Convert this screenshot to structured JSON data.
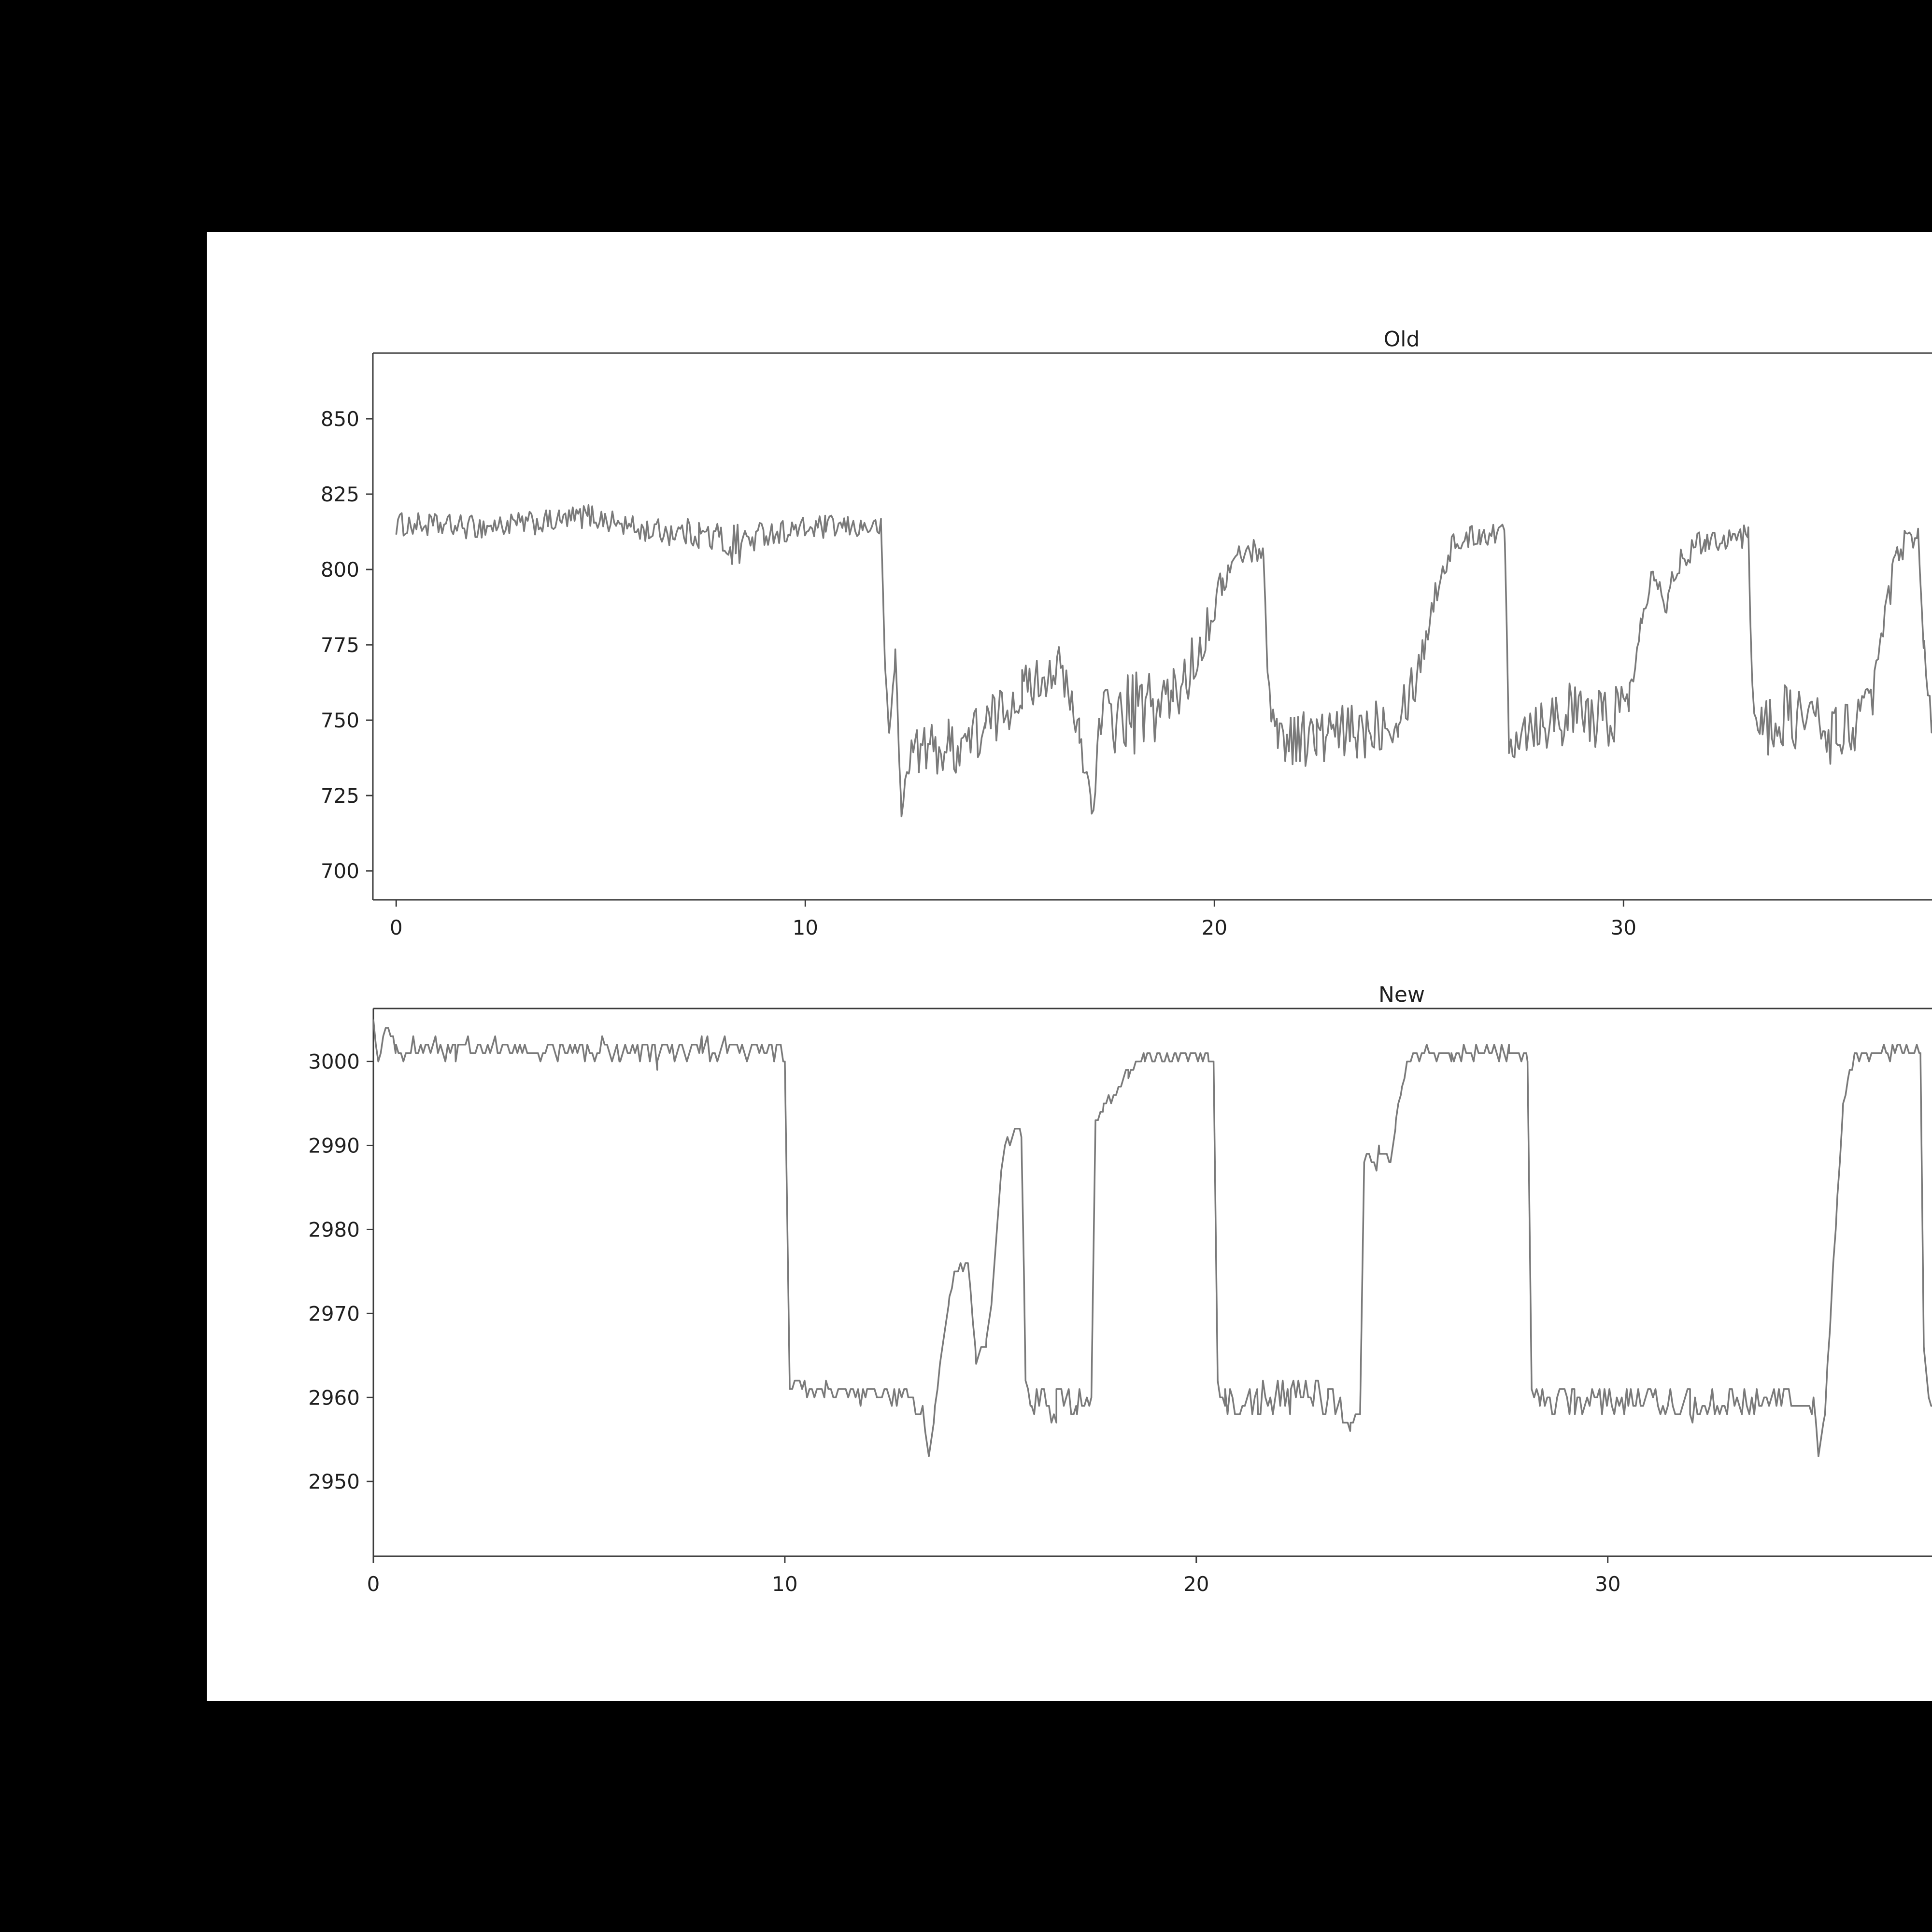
{
  "figure": {
    "page_background": "#000000",
    "canvas_background": "#ffffff"
  },
  "chart_data": [
    {
      "type": "line",
      "title": "Old",
      "line_color": "#7a7a7a",
      "grid": false,
      "legend": null,
      "x_ticks": [
        0,
        10,
        20,
        30
      ],
      "y_ticks": [
        850,
        825,
        800,
        775,
        750,
        725,
        700
      ],
      "xlim": [
        -0.57,
        37.54
      ],
      "ylim": [
        690.4,
        871.8
      ],
      "series": [
        {
          "name": "Old",
          "quantize": false,
          "sample_step_x": 0.045,
          "keypoints_format": [
            "x",
            "mean_y",
            "noise_amplitude"
          ],
          "keypoints": [
            [
              0,
              815,
              4
            ],
            [
              2,
              814,
              4
            ],
            [
              4,
              816,
              4
            ],
            [
              4.7,
              818,
              4
            ],
            [
              6,
              813,
              4
            ],
            [
              7.4,
              812,
              5
            ],
            [
              8.3,
              808,
              8
            ],
            [
              9,
              812,
              4
            ],
            [
              10.5,
              814,
              4
            ],
            [
              11.85,
              814,
              3
            ],
            [
              11.95,
              768,
              2
            ],
            [
              12.05,
              745,
              3
            ],
            [
              12.2,
              772,
              3
            ],
            [
              12.35,
              718,
              3
            ],
            [
              12.55,
              740,
              7
            ],
            [
              13.5,
              741,
              10
            ],
            [
              14.4,
              747,
              10
            ],
            [
              15.3,
              760,
              8
            ],
            [
              16.2,
              768,
              7
            ],
            [
              16.7,
              745,
              8
            ],
            [
              17.0,
              722,
              6
            ],
            [
              17.25,
              750,
              12
            ],
            [
              18.0,
              752,
              14
            ],
            [
              19.0,
              757,
              12
            ],
            [
              19.6,
              772,
              8
            ],
            [
              20.2,
              796,
              5
            ],
            [
              20.6,
              805,
              4
            ],
            [
              21.2,
              807,
              4
            ],
            [
              21.3,
              762,
              5
            ],
            [
              21.55,
              745,
              9
            ],
            [
              22.5,
              744,
              10
            ],
            [
              23.5,
              746,
              10
            ],
            [
              24.5,
              753,
              10
            ],
            [
              24.95,
              765,
              8
            ],
            [
              25.4,
              792,
              5
            ],
            [
              25.8,
              808,
              4
            ],
            [
              26.5,
              812,
              4
            ],
            [
              27.1,
              812,
              4
            ],
            [
              27.2,
              741,
              4
            ],
            [
              27.45,
              748,
              10
            ],
            [
              28.5,
              752,
              11
            ],
            [
              29.5,
              750,
              11
            ],
            [
              30.15,
              757,
              9
            ],
            [
              30.45,
              788,
              6
            ],
            [
              30.75,
              800,
              4
            ],
            [
              31.05,
              789,
              5
            ],
            [
              31.4,
              804,
              4
            ],
            [
              32.0,
              810,
              4
            ],
            [
              33.05,
              811,
              4
            ],
            [
              33.15,
              759,
              4
            ],
            [
              33.4,
              747,
              10
            ],
            [
              34.2,
              752,
              12
            ],
            [
              35.2,
              745,
              11
            ],
            [
              36.0,
              753,
              9
            ],
            [
              36.3,
              776,
              7
            ],
            [
              36.6,
              800,
              5
            ],
            [
              36.9,
              810,
              4
            ],
            [
              37.2,
              812,
              4
            ],
            [
              37.35,
              773,
              4
            ],
            [
              37.54,
              750,
              6
            ]
          ]
        }
      ]
    },
    {
      "type": "line",
      "title": "New",
      "line_color": "#7a7a7a",
      "grid": false,
      "legend": null,
      "x_ticks": [
        0,
        10,
        20,
        30
      ],
      "y_ticks": [
        3000,
        2990,
        2980,
        2970,
        2960,
        2950
      ],
      "xlim": [
        0,
        37.88
      ],
      "ylim": [
        2941.1,
        3006.3
      ],
      "series": [
        {
          "name": "New",
          "quantize": true,
          "sample_step_x": 0.06,
          "keypoints_format": [
            "x",
            "mean_y",
            "noise_amplitude"
          ],
          "keypoints": [
            [
              0,
              3005,
              0
            ],
            [
              0.12,
              3000,
              0.5
            ],
            [
              0.3,
              3004,
              0.5
            ],
            [
              0.55,
              3001.5,
              1
            ],
            [
              2,
              3001.5,
              1.4
            ],
            [
              4,
              3001.3,
              1.2
            ],
            [
              6,
              3001.4,
              1.3
            ],
            [
              6.9,
              3000.8,
              1.8
            ],
            [
              8,
              3001.4,
              1.4
            ],
            [
              9.9,
              3001.4,
              1.1
            ],
            [
              10.0,
              3000.5,
              0.4
            ],
            [
              10.12,
              2961,
              1
            ],
            [
              11,
              2960.3,
              1.3
            ],
            [
              12,
              2960.3,
              1.3
            ],
            [
              13.0,
              2960,
              1.2
            ],
            [
              13.35,
              2958,
              0.8
            ],
            [
              13.5,
              2952.5,
              0.6
            ],
            [
              13.65,
              2958,
              0.8
            ],
            [
              13.8,
              2965,
              0.8
            ],
            [
              14.0,
              2972,
              0.8
            ],
            [
              14.15,
              2975.5,
              0.7
            ],
            [
              14.45,
              2975.5,
              0.7
            ],
            [
              14.65,
              2964.5,
              0.9
            ],
            [
              14.9,
              2966.5,
              0.9
            ],
            [
              15.05,
              2972,
              0.8
            ],
            [
              15.2,
              2983,
              0.8
            ],
            [
              15.35,
              2990.5,
              0.9
            ],
            [
              15.75,
              2991.5,
              0.9
            ],
            [
              15.85,
              2963,
              0.8
            ],
            [
              16.0,
              2959.5,
              1.6
            ],
            [
              16.6,
              2959,
              2.2
            ],
            [
              17.1,
              2959.5,
              2
            ],
            [
              17.45,
              2960,
              1
            ],
            [
              17.55,
              2993,
              0.5
            ],
            [
              17.75,
              2994.5,
              0.5
            ],
            [
              18.05,
              2996.5,
              0.5
            ],
            [
              18.35,
              2998.5,
              0.5
            ],
            [
              18.6,
              3000,
              0.5
            ],
            [
              18.75,
              3000.7,
              0.9
            ],
            [
              19.5,
              3000.7,
              0.9
            ],
            [
              20.3,
              3000.6,
              0.8
            ],
            [
              20.42,
              2999.5,
              0.3
            ],
            [
              20.52,
              2961,
              0.8
            ],
            [
              20.7,
              2959.8,
              1.8
            ],
            [
              21.5,
              2960,
              2.4
            ],
            [
              22.3,
              2960.5,
              2.4
            ],
            [
              23.2,
              2960,
              2.2
            ],
            [
              23.75,
              2956.8,
              1.4
            ],
            [
              23.98,
              2958,
              0.8
            ],
            [
              24.08,
              2988,
              1
            ],
            [
              24.45,
              2988.5,
              1.4
            ],
            [
              24.72,
              2989,
              0.9
            ],
            [
              24.85,
              2993,
              0.6
            ],
            [
              25.0,
              2997,
              0.6
            ],
            [
              25.15,
              3000,
              0.6
            ],
            [
              25.3,
              3000.6,
              0.9
            ],
            [
              26.2,
              3000.7,
              0.9
            ],
            [
              27.0,
              3001,
              0.9
            ],
            [
              27.6,
              3001.4,
              1
            ],
            [
              28.05,
              3000.6,
              0.7
            ],
            [
              28.15,
              2961,
              0.8
            ],
            [
              28.35,
              2959.6,
              1.5
            ],
            [
              29.2,
              2959.6,
              1.8
            ],
            [
              30.5,
              2959.6,
              2
            ],
            [
              32.0,
              2959.4,
              2
            ],
            [
              33.5,
              2959.6,
              2
            ],
            [
              34.6,
              2959.6,
              1.8
            ],
            [
              35.0,
              2958.6,
              1.3
            ],
            [
              35.12,
              2953.8,
              0.7
            ],
            [
              35.28,
              2958,
              0.7
            ],
            [
              35.42,
              2970,
              0.9
            ],
            [
              35.58,
              2984,
              0.9
            ],
            [
              35.72,
              2995,
              0.6
            ],
            [
              35.88,
              2999.3,
              0.5
            ],
            [
              36.05,
              3000.6,
              0.8
            ],
            [
              36.8,
              3001,
              1
            ],
            [
              37.2,
              3001.3,
              1
            ],
            [
              37.45,
              3001.2,
              1
            ],
            [
              37.6,
              3001,
              0.5
            ],
            [
              37.68,
              2966,
              0.8
            ],
            [
              37.8,
              2959,
              1.4
            ],
            [
              37.88,
              2959,
              1.4
            ]
          ]
        }
      ]
    }
  ]
}
